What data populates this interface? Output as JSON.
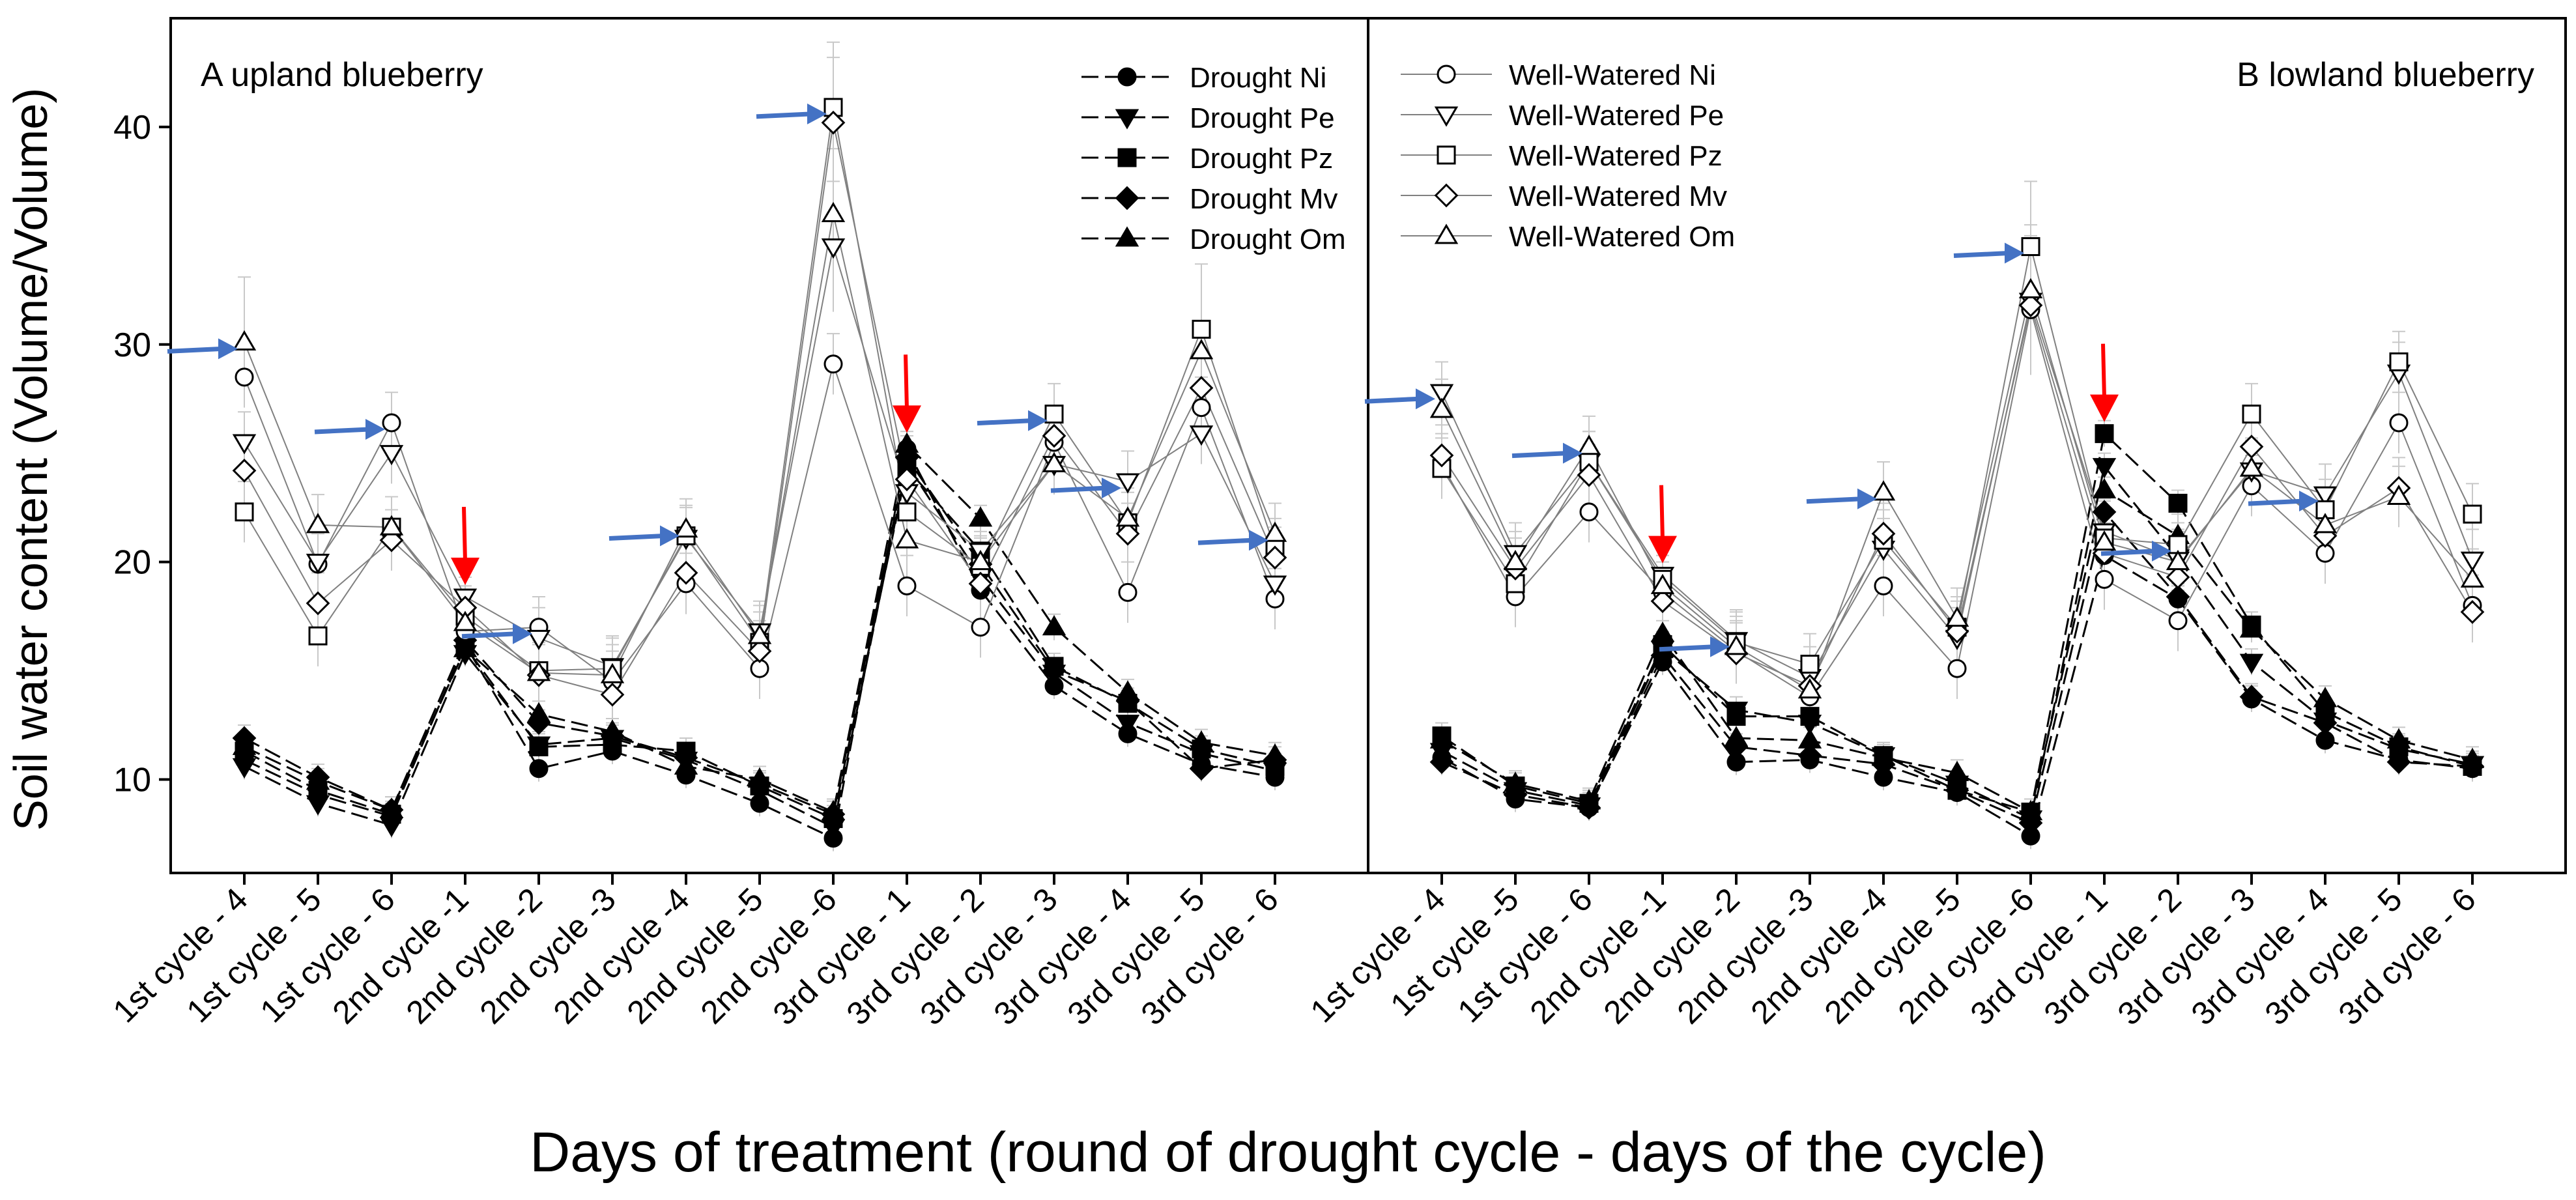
{
  "figure": {
    "ylabel": "Soil water content (Volume/Volume)",
    "xlabel": "Days of treatment (round of drought cycle - days of the cycle)"
  },
  "chart_data": [
    {
      "type": "line",
      "title": "A upland blueberry",
      "ylabel": "Soil water content (Volume/Volume)",
      "xlabel": "Days of treatment (round of drought cycle - days of the cycle)",
      "ylim": [
        5.7,
        45
      ],
      "yticks": [
        10,
        20,
        30,
        40
      ],
      "categories": [
        "1st cycle - 4",
        "1st cycle - 5",
        "1st cycle - 6",
        "2nd cycle -1",
        "2nd cycle -2",
        "2nd cycle -3",
        "2nd cycle -4",
        "2nd cycle -5",
        "2nd cycle -6",
        "3rd cycle - 1",
        "3rd cycle - 2",
        "3rd cycle - 3",
        "3rd cycle - 4",
        "3rd cycle - 5",
        "3rd cycle - 6"
      ],
      "legend": "top-right",
      "series": [
        {
          "name": "Drought Ni",
          "treatment": "drought",
          "marker": "circle",
          "values": [
            10.9,
            9.3,
            8.3,
            16.2,
            10.5,
            11.3,
            10.2,
            8.9,
            7.3,
            25.2,
            18.7,
            14.3,
            12.1,
            10.7,
            10.1
          ]
        },
        {
          "name": "Drought Pe",
          "treatment": "drought",
          "marker": "triangle-down",
          "values": [
            10.6,
            8.9,
            7.9,
            15.8,
            11.6,
            11.9,
            10.9,
            9.5,
            7.8,
            24.5,
            19.3,
            14.9,
            12.6,
            11.2,
            10.4
          ]
        },
        {
          "name": "Drought Pz",
          "treatment": "drought",
          "marker": "square",
          "values": [
            11.3,
            9.5,
            8.4,
            16.1,
            11.5,
            11.6,
            11.3,
            9.7,
            8.2,
            24.3,
            20.5,
            15.2,
            13.5,
            11.4,
            10.6
          ]
        },
        {
          "name": "Drought Mv",
          "treatment": "drought",
          "marker": "diamond",
          "values": [
            11.9,
            10.1,
            8.6,
            16.4,
            12.6,
            12.0,
            11.0,
            9.8,
            8.4,
            24.8,
            19.9,
            15.0,
            13.6,
            10.5,
            10.9
          ]
        },
        {
          "name": "Drought Om",
          "treatment": "drought",
          "marker": "triangle-up",
          "values": [
            11.5,
            9.9,
            8.6,
            16.0,
            13.0,
            12.2,
            10.6,
            10.0,
            8.5,
            25.4,
            22.0,
            17.0,
            14.0,
            11.7,
            11.1
          ]
        },
        {
          "name": "Well-Watered Ni",
          "treatment": "well",
          "marker": "circle",
          "values": [
            28.5,
            19.9,
            26.4,
            16.8,
            17.0,
            14.5,
            19.0,
            15.1,
            29.1,
            18.9,
            17.0,
            25.5,
            18.6,
            27.1,
            18.3
          ]
        },
        {
          "name": "Well-Watered Pe",
          "treatment": "well",
          "marker": "triangle-down",
          "values": [
            25.5,
            20.0,
            25.0,
            18.4,
            16.5,
            15.2,
            21.1,
            16.8,
            34.5,
            23.2,
            20.5,
            24.5,
            23.7,
            25.9,
            19.0
          ]
        },
        {
          "name": "Well-Watered Pz",
          "treatment": "well",
          "marker": "square",
          "values": [
            22.3,
            16.6,
            21.6,
            17.5,
            15.0,
            15.1,
            21.2,
            16.3,
            40.9,
            22.3,
            19.8,
            26.8,
            21.8,
            30.7,
            20.6
          ]
        },
        {
          "name": "Well-Watered Mv",
          "treatment": "well",
          "marker": "diamond",
          "values": [
            24.2,
            18.1,
            21.0,
            17.9,
            14.8,
            13.9,
            19.5,
            15.9,
            40.2,
            23.8,
            19.0,
            25.8,
            21.3,
            28.0,
            20.2
          ]
        },
        {
          "name": "Well-Watered Om",
          "treatment": "well",
          "marker": "triangle-up",
          "values": [
            30.1,
            21.7,
            21.6,
            17.2,
            14.9,
            14.8,
            21.5,
            16.6,
            36.0,
            21.0,
            20.0,
            24.5,
            22.0,
            29.7,
            21.3
          ]
        }
      ],
      "annotations": {
        "blue_arrows_at": [
          "1st cycle - 4",
          "1st cycle - 6",
          "2nd cycle -2",
          "2nd cycle -4",
          "2nd cycle -6",
          "3rd cycle - 3",
          "3rd cycle - 4",
          "3rd cycle - 6"
        ],
        "red_arrows_at": [
          "2nd cycle -1",
          "3rd cycle - 1"
        ]
      }
    },
    {
      "type": "line",
      "title": "B lowland blueberry",
      "ylim": [
        5.7,
        45
      ],
      "categories": [
        "1st cycle - 4",
        "1st cycle -5",
        "1st cycle - 6",
        "2nd cycle -1",
        "2nd cycle -2",
        "2nd cycle -3",
        "2nd cycle -4",
        "2nd cycle -5",
        "2nd cycle -6",
        "3rd cycle - 1",
        "3rd cycle - 2",
        "3rd cycle - 3",
        "3rd cycle - 4",
        "3rd cycle - 5",
        "3rd cycle - 6"
      ],
      "legend": "top-left",
      "series": [
        {
          "name": "Drought Ni",
          "treatment": "drought",
          "marker": "circle",
          "values": [
            11.0,
            9.1,
            8.7,
            15.4,
            10.8,
            10.9,
            10.1,
            9.4,
            7.4,
            20.3,
            18.3,
            13.7,
            11.8,
            10.9,
            10.5
          ]
        },
        {
          "name": "Drought Pe",
          "treatment": "drought",
          "marker": "triangle-down",
          "values": [
            11.3,
            9.5,
            8.8,
            16.0,
            13.2,
            12.6,
            11.1,
            9.8,
            8.2,
            24.4,
            20.2,
            15.4,
            12.7,
            11.4,
            10.7
          ]
        },
        {
          "name": "Drought Pz",
          "treatment": "drought",
          "marker": "square",
          "values": [
            12.0,
            9.7,
            8.9,
            16.2,
            12.9,
            12.9,
            11.1,
            9.5,
            8.5,
            25.9,
            22.7,
            17.1,
            13.1,
            11.5,
            10.6
          ]
        },
        {
          "name": "Drought Mv",
          "treatment": "drought",
          "marker": "diamond",
          "values": [
            10.8,
            9.3,
            8.7,
            15.7,
            11.5,
            11.1,
            10.7,
            9.5,
            8.0,
            22.3,
            18.4,
            13.8,
            12.6,
            10.8,
            10.6
          ]
        },
        {
          "name": "Drought Om",
          "treatment": "drought",
          "marker": "triangle-up",
          "values": [
            11.8,
            9.8,
            9.0,
            16.7,
            11.9,
            11.8,
            11.0,
            10.3,
            8.5,
            23.3,
            21.2,
            16.9,
            13.7,
            11.8,
            10.9
          ]
        },
        {
          "name": "Well-Watered Ni",
          "treatment": "well",
          "marker": "circle",
          "values": [
            24.5,
            18.4,
            22.3,
            18.6,
            15.9,
            13.8,
            18.9,
            15.1,
            31.6,
            19.2,
            17.3,
            23.5,
            20.4,
            26.4,
            18.0
          ]
        },
        {
          "name": "Well-Watered Pe",
          "treatment": "well",
          "marker": "triangle-down",
          "values": [
            27.8,
            20.4,
            24.6,
            19.4,
            16.4,
            14.7,
            20.6,
            16.5,
            32.0,
            21.4,
            20.1,
            24.2,
            23.1,
            28.7,
            20.1
          ]
        },
        {
          "name": "Well-Watered Pz",
          "treatment": "well",
          "marker": "square",
          "values": [
            24.3,
            19.0,
            24.6,
            19.2,
            16.3,
            15.3,
            21.0,
            17.0,
            34.5,
            21.1,
            20.8,
            26.8,
            22.4,
            29.2,
            22.2
          ]
        },
        {
          "name": "Well-Watered Mv",
          "treatment": "well",
          "marker": "diamond",
          "values": [
            24.9,
            19.7,
            24.0,
            18.2,
            15.8,
            14.3,
            21.3,
            16.8,
            31.8,
            20.4,
            19.3,
            25.3,
            21.2,
            23.4,
            17.7
          ]
        },
        {
          "name": "Well-Watered Om",
          "treatment": "well",
          "marker": "triangle-up",
          "values": [
            27.0,
            20.0,
            25.3,
            18.9,
            16.1,
            14.1,
            23.2,
            17.4,
            32.5,
            20.9,
            20.0,
            24.3,
            21.7,
            23.0,
            19.2
          ]
        }
      ],
      "annotations": {
        "blue_arrows_at": [
          "1st cycle - 4",
          "1st cycle - 6",
          "2nd cycle -2",
          "2nd cycle -4",
          "2nd cycle -6",
          "3rd cycle - 2",
          "3rd cycle - 4"
        ],
        "red_arrows_at": [
          "2nd cycle -1",
          "3rd cycle - 1"
        ]
      }
    }
  ],
  "colors": {
    "arrow_blue": "#4472C4",
    "arrow_red": "#FF0000",
    "line": "#000000",
    "well_line": "#808080",
    "errorbar": "#c8c8c8"
  }
}
